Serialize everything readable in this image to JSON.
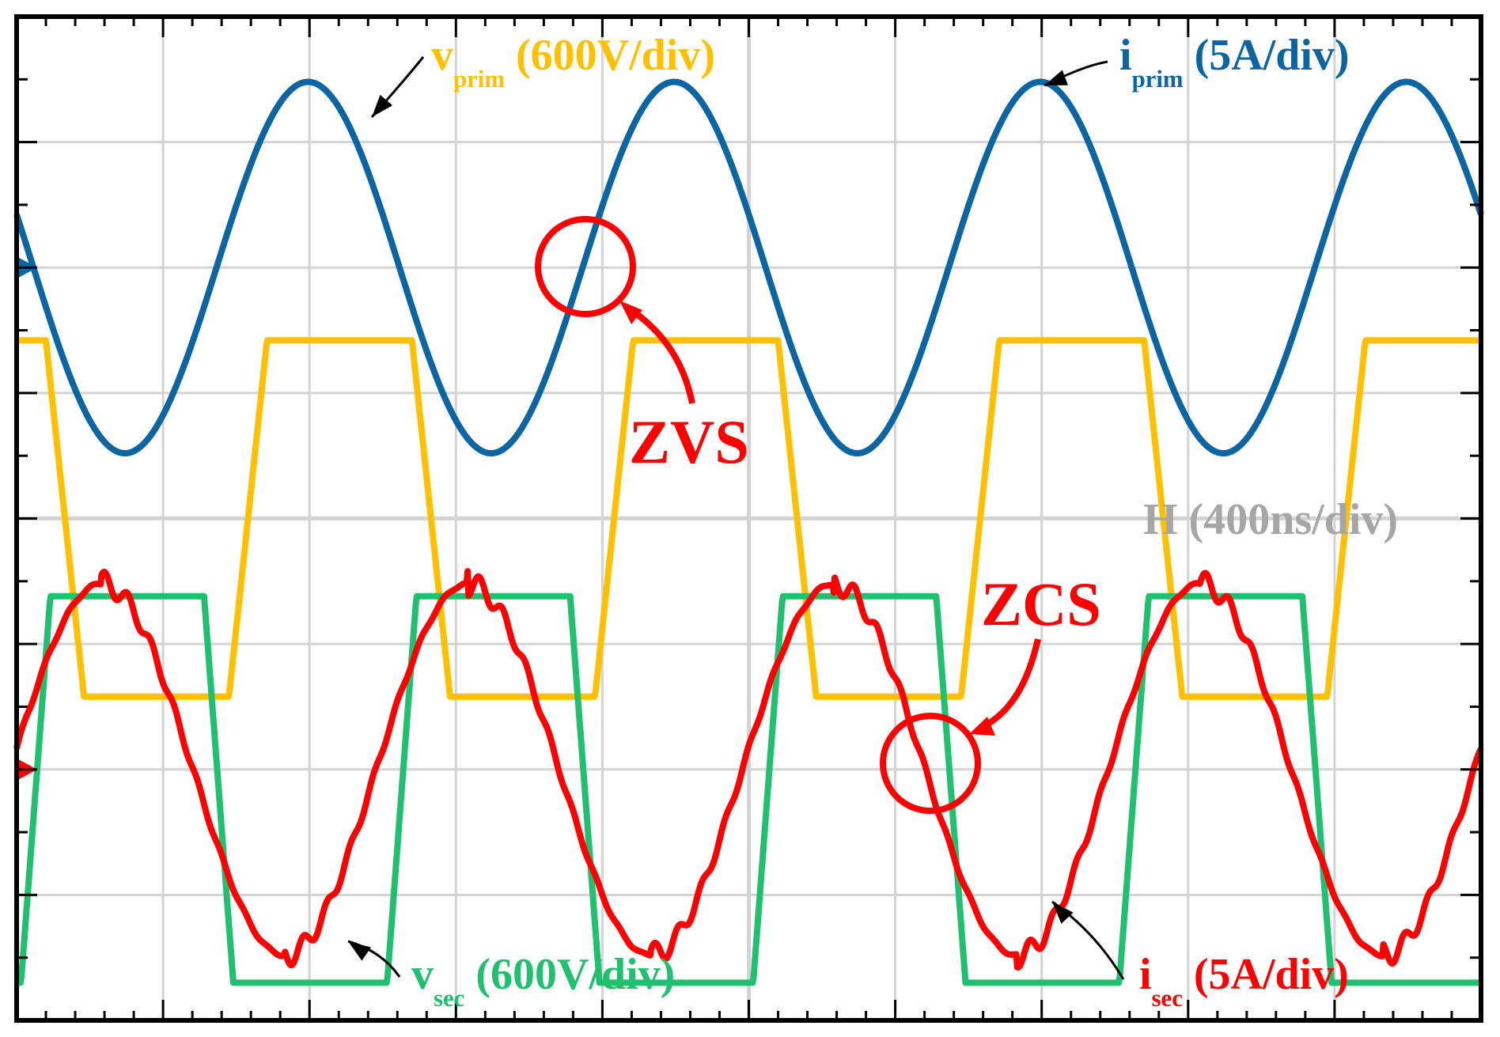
{
  "chart_data": {
    "type": "line",
    "title": "",
    "grid": true,
    "divisions": {
      "x": 10,
      "y": 8
    },
    "time_scale_label": "H (400ns/div)",
    "xlim_div": [
      0,
      10
    ],
    "colors": {
      "background": "#ffffff",
      "grid": "#d3d3d3",
      "frame": "#000000"
    },
    "series": [
      {
        "name": "v_prim",
        "main": "v",
        "sub": "prim",
        "scale": "(600V/div)",
        "shape": "trapezoid",
        "color": "#ffc000",
        "high_div": 1.42,
        "low_div": -1.42,
        "phase_div": 1.45,
        "period_div": 2.5,
        "rise_div": 0.26
      },
      {
        "name": "i_prim",
        "main": "i",
        "sub": "prim",
        "scale": "(5A/div)",
        "shape": "sine",
        "color": "#0b65a3",
        "offset_div": 2.0,
        "amplitude_div": 1.48,
        "period_div": 2.5,
        "peak_at_div": 1.99
      },
      {
        "name": "v_sec",
        "main": "v",
        "sub": "sec",
        "scale": "(600V/div)",
        "shape": "trapezoid",
        "color": "#20c070",
        "high_div": -0.62,
        "low_div": -3.7,
        "phase_div": 0.03,
        "period_div": 2.5,
        "rise_div": 0.2
      },
      {
        "name": "i_sec",
        "main": "i",
        "sub": "sec",
        "scale": "(5A/div)",
        "shape": "sine-ringing",
        "color": "#ff0000",
        "offset_div": -2.0,
        "amplitude_div": 1.48,
        "period_div": 2.5,
        "peak_at_div": 0.58,
        "ripple_div": 0.1
      }
    ],
    "annotations": [
      {
        "text": "ZVS",
        "color": "#ff0000"
      },
      {
        "text": "ZCS",
        "color": "#ff0000"
      }
    ]
  }
}
